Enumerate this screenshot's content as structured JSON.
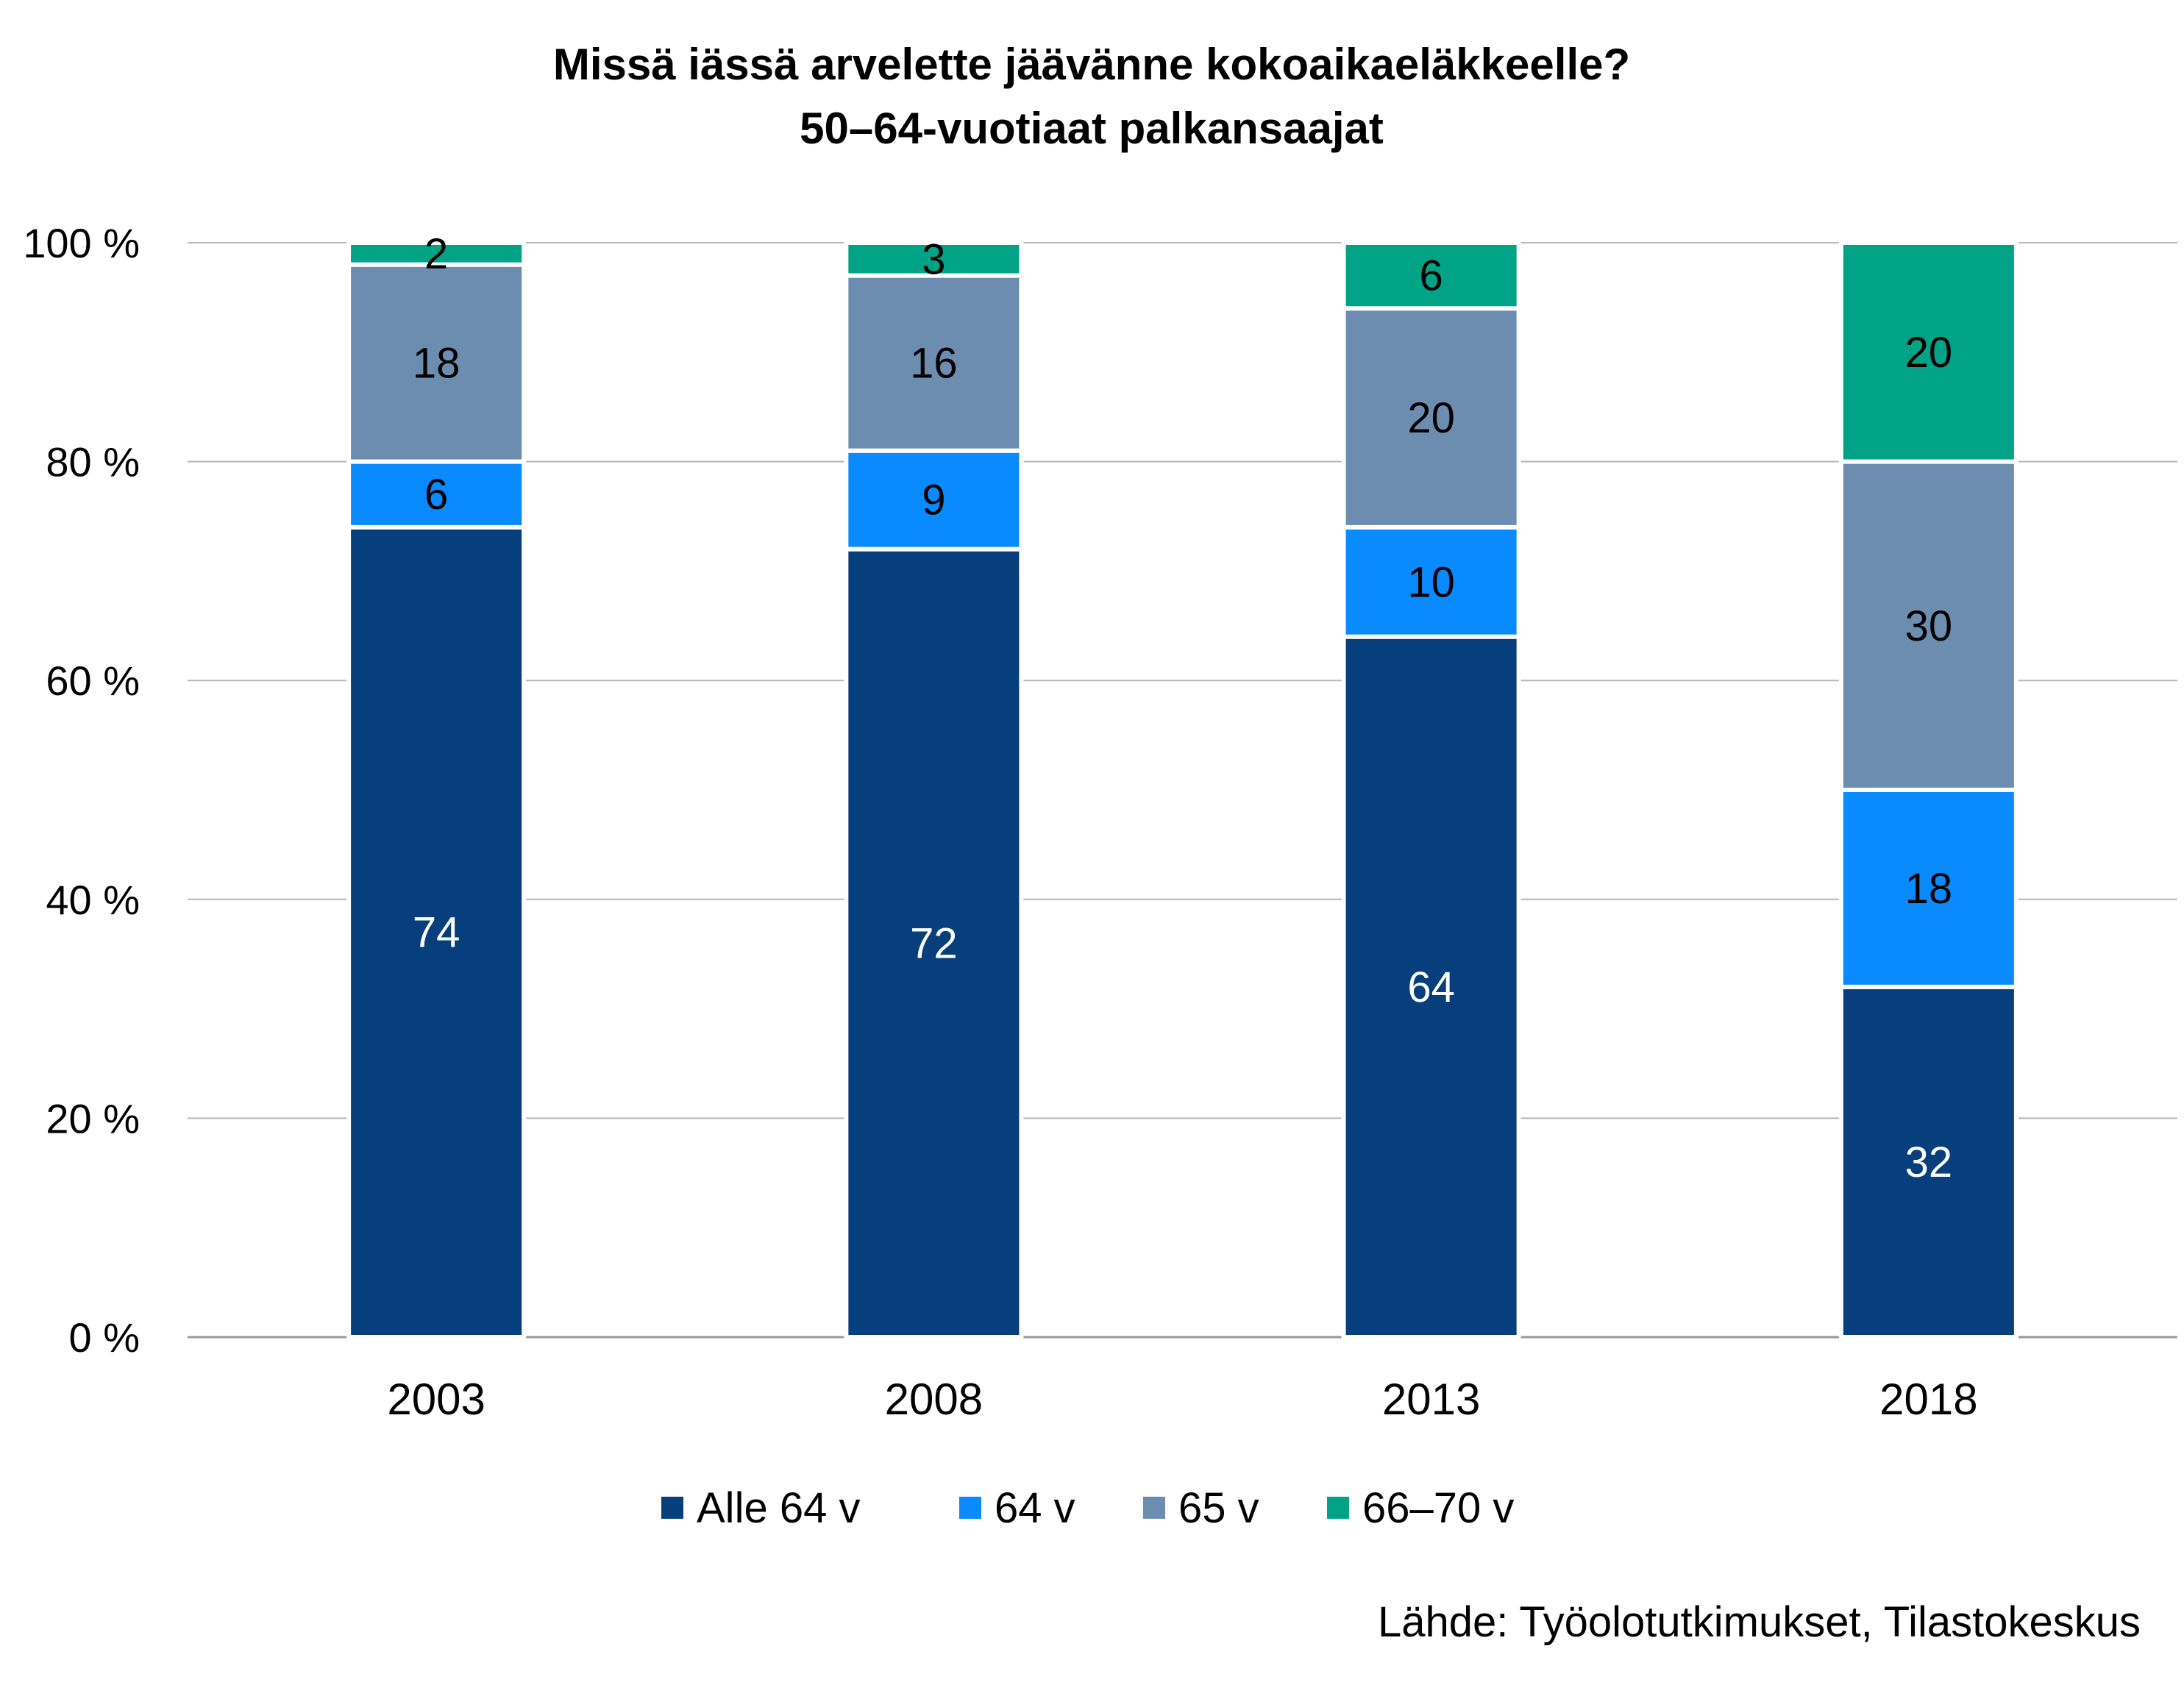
{
  "chart_data": {
    "type": "bar",
    "stacked": true,
    "title": "Missä iässä arvelette jäävänne kokoaikaeläkkeelle?",
    "subtitle": "50–64-vuotiaat palkansaajat",
    "categories": [
      "2003",
      "2008",
      "2013",
      "2018"
    ],
    "series": [
      {
        "name": "Alle 64 v",
        "color": "#063F7C",
        "label_color": "#ffffff",
        "values": [
          74,
          72,
          64,
          32
        ]
      },
      {
        "name": "64 v",
        "color": "#0A8AFF",
        "label_color": "#000000",
        "values": [
          6,
          9,
          10,
          18
        ]
      },
      {
        "name": "65 v",
        "color": "#6C8DB0",
        "label_color": "#000000",
        "values": [
          18,
          16,
          20,
          30
        ]
      },
      {
        "name": "66–70 v",
        "color": "#00A385",
        "label_color": "#000000",
        "values": [
          2,
          3,
          6,
          20
        ]
      }
    ],
    "ylim": [
      0,
      100
    ],
    "yticks": [
      "0 %",
      "20 %",
      "40 %",
      "60 %",
      "80 %",
      "100 %"
    ],
    "grid": true,
    "legend_position": "bottom",
    "source": "Lähde: Työolotutkimukset, Tilastokeskus"
  }
}
